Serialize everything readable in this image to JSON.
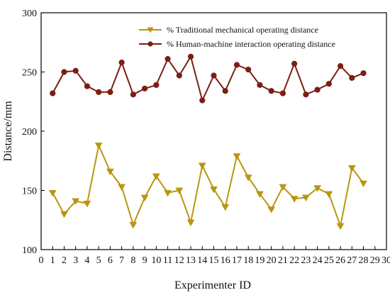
{
  "chart_data": {
    "type": "line",
    "title": "",
    "xlabel": "Experimenter ID",
    "ylabel": "Distance/mm",
    "xlim": [
      0,
      30
    ],
    "ylim": [
      100,
      300
    ],
    "x_ticks": [
      0,
      1,
      2,
      3,
      4,
      5,
      6,
      7,
      8,
      9,
      10,
      11,
      12,
      13,
      14,
      15,
      16,
      17,
      18,
      19,
      20,
      21,
      22,
      23,
      24,
      25,
      26,
      27,
      28,
      29,
      30
    ],
    "y_ticks": [
      100,
      150,
      200,
      250,
      300
    ],
    "legend_position": "top-right",
    "grid": false,
    "x": [
      1,
      2,
      3,
      4,
      5,
      6,
      7,
      8,
      9,
      10,
      11,
      12,
      13,
      14,
      15,
      16,
      17,
      18,
      19,
      20,
      21,
      22,
      23,
      24,
      25,
      26,
      27,
      28
    ],
    "series": [
      {
        "name": "% Traditional mechanical operating distance",
        "color": "#b8960f",
        "marker": "triangle-down",
        "values": [
          148,
          130,
          141,
          139,
          188,
          166,
          153,
          121,
          144,
          162,
          148,
          150,
          123,
          171,
          151,
          136,
          179,
          161,
          147,
          134,
          153,
          143,
          144,
          152,
          147,
          120,
          169,
          156
        ]
      },
      {
        "name": "% Human-machine interaction operating distance",
        "color": "#7a1f12",
        "marker": "circle",
        "values": [
          232,
          250,
          251,
          238,
          233,
          233,
          258,
          231,
          236,
          239,
          261,
          247,
          263,
          226,
          247,
          234,
          256,
          252,
          239,
          234,
          232,
          257,
          231,
          235,
          240,
          255,
          245,
          249
        ]
      }
    ]
  }
}
